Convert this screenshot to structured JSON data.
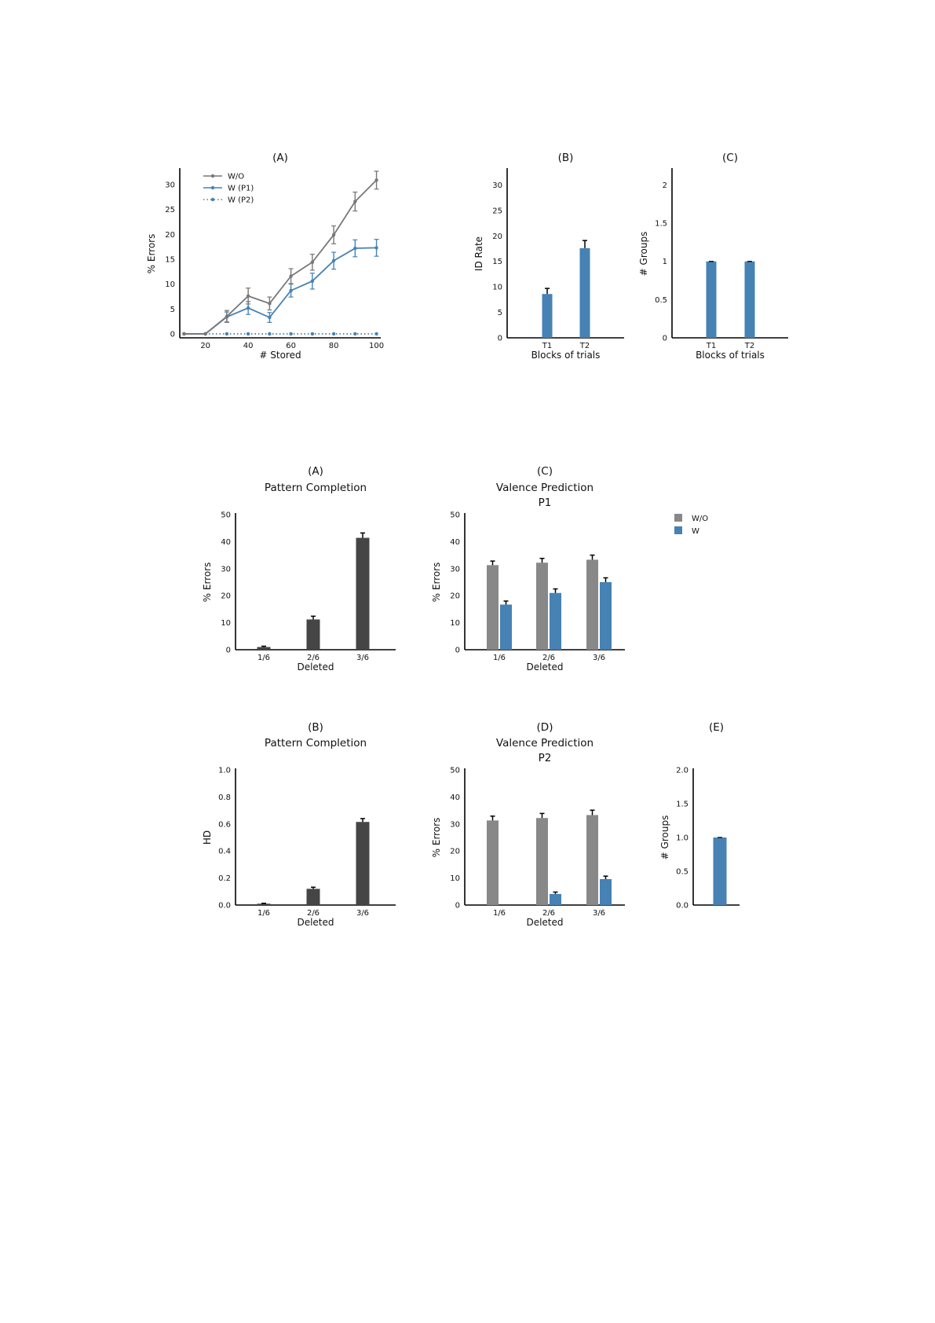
{
  "chart_data": [
    {
      "id": "top-A",
      "type": "line",
      "label": "(A)",
      "title": "",
      "xlabel": "# Stored",
      "ylabel": "% Errors",
      "xlim": [
        8,
        102
      ],
      "ylim": [
        -0.8,
        33
      ],
      "xticks": [
        20,
        40,
        60,
        80,
        100
      ],
      "yticks": [
        0,
        5,
        10,
        15,
        20,
        25,
        30
      ],
      "legend": "top-left",
      "x": [
        10,
        20,
        30,
        40,
        50,
        60,
        70,
        80,
        90,
        100
      ],
      "series": [
        {
          "name": "W/O",
          "color": "#777777",
          "style": "solid",
          "values": [
            0,
            0,
            3.5,
            7.6,
            6.1,
            11.6,
            14.4,
            19.9,
            26.6,
            30.9
          ],
          "err": [
            0,
            0,
            1.2,
            1.6,
            1.3,
            1.5,
            1.6,
            1.8,
            1.9,
            1.8
          ]
        },
        {
          "name": "W (P1)",
          "color": "#4682b4",
          "style": "solid",
          "values": [
            0,
            0,
            3.4,
            5.2,
            3.3,
            8.7,
            10.6,
            14.7,
            17.2,
            17.3
          ],
          "err": [
            0,
            0,
            1.0,
            1.3,
            1.0,
            1.3,
            1.6,
            1.7,
            1.7,
            1.7
          ]
        },
        {
          "name": "W (P2)",
          "color": "#4682b4",
          "style": "dotted",
          "values": [
            0,
            0,
            0,
            0,
            0,
            0,
            0,
            0,
            0,
            0
          ],
          "err": [
            0,
            0,
            0,
            0,
            0,
            0,
            0,
            0,
            0,
            0
          ]
        }
      ]
    },
    {
      "id": "top-B",
      "type": "bar",
      "label": "(B)",
      "title": "",
      "xlabel": "Blocks of trials",
      "ylabel": "ID Rate",
      "ylim": [
        0,
        33
      ],
      "yticks": [
        0,
        5,
        10,
        15,
        20,
        25,
        30
      ],
      "categories": [
        "T1",
        "T2"
      ],
      "series": [
        {
          "name": "",
          "color": "#4682b4",
          "values": [
            8.6,
            17.6
          ],
          "err": [
            1.1,
            1.5
          ]
        }
      ]
    },
    {
      "id": "top-C",
      "type": "bar",
      "label": "(C)",
      "title": "",
      "xlabel": "Blocks of trials",
      "ylabel": "# Groups",
      "ylim": [
        0,
        2.2
      ],
      "yticks": [
        0.0,
        0.5,
        1.0,
        1.5,
        2.0
      ],
      "categories": [
        "T1",
        "T2"
      ],
      "series": [
        {
          "name": "",
          "color": "#4682b4",
          "values": [
            1.0,
            1.0
          ],
          "err": [
            0,
            0
          ]
        }
      ]
    },
    {
      "id": "mid-A",
      "type": "bar",
      "label": "(A)",
      "title": "Pattern Completion",
      "xlabel": "Deleted",
      "ylabel": "% Errors",
      "ylim": [
        0,
        50
      ],
      "yticks": [
        0,
        10,
        20,
        30,
        40,
        50
      ],
      "categories": [
        "1/6",
        "2/6",
        "3/6"
      ],
      "series": [
        {
          "name": "",
          "color": "#454545",
          "values": [
            1.0,
            11.2,
            41.4
          ],
          "err": [
            0.3,
            1.2,
            1.8
          ]
        }
      ]
    },
    {
      "id": "mid-C",
      "type": "bar",
      "label": "(C)",
      "title": "Valence Prediction",
      "subtitle": "P1",
      "xlabel": "Deleted",
      "ylabel": "% Errors",
      "ylim": [
        0,
        50
      ],
      "yticks": [
        0,
        10,
        20,
        30,
        40,
        50
      ],
      "categories": [
        "1/6",
        "2/6",
        "3/6"
      ],
      "series": [
        {
          "name": "W/O",
          "color": "#888888",
          "values": [
            31.3,
            32.2,
            33.3
          ],
          "err": [
            1.5,
            1.6,
            1.7
          ]
        },
        {
          "name": "W",
          "color": "#4682b4",
          "values": [
            16.7,
            21.0,
            25.0
          ],
          "err": [
            1.3,
            1.5,
            1.6
          ]
        }
      ]
    },
    {
      "id": "bot-B",
      "type": "bar",
      "label": "(B)",
      "title": "Pattern Completion",
      "xlabel": "Deleted",
      "ylabel": "HD",
      "ylim": [
        0,
        1.0
      ],
      "yticks": [
        "0.0",
        "0.2",
        "0.4",
        "0.6",
        "0.8",
        "1.0"
      ],
      "categories": [
        "1/6",
        "2/6",
        "3/6"
      ],
      "series": [
        {
          "name": "",
          "color": "#454545",
          "values": [
            0.01,
            0.12,
            0.615
          ],
          "err": [
            0.003,
            0.012,
            0.025
          ]
        }
      ]
    },
    {
      "id": "bot-D",
      "type": "bar",
      "label": "(D)",
      "title": "Valence Prediction",
      "subtitle": "P2",
      "xlabel": "Deleted",
      "ylabel": "% Errors",
      "ylim": [
        0,
        50
      ],
      "yticks": [
        0,
        10,
        20,
        30,
        40,
        50
      ],
      "categories": [
        "1/6",
        "2/6",
        "3/6"
      ],
      "series": [
        {
          "name": "W/O",
          "color": "#888888",
          "values": [
            31.3,
            32.2,
            33.3
          ],
          "err": [
            1.6,
            1.7,
            1.8
          ]
        },
        {
          "name": "W",
          "color": "#4682b4",
          "values": [
            0,
            4.1,
            9.6
          ],
          "err": [
            0,
            0.7,
            1.1
          ]
        }
      ]
    },
    {
      "id": "bot-E",
      "type": "bar",
      "label": "(E)",
      "title": "",
      "xlabel": "",
      "ylabel": "# Groups",
      "ylim": [
        0,
        2.0
      ],
      "yticks": [
        "0.0",
        "0.5",
        "1.0",
        "1.5",
        "2.0"
      ],
      "categories": [
        ""
      ],
      "series": [
        {
          "name": "",
          "color": "#4682b4",
          "values": [
            1.0
          ],
          "err": [
            0
          ]
        }
      ]
    }
  ],
  "shared_legend": {
    "items": [
      {
        "name": "W/O",
        "color": "#888888"
      },
      {
        "name": "W",
        "color": "#4682b4"
      }
    ]
  }
}
